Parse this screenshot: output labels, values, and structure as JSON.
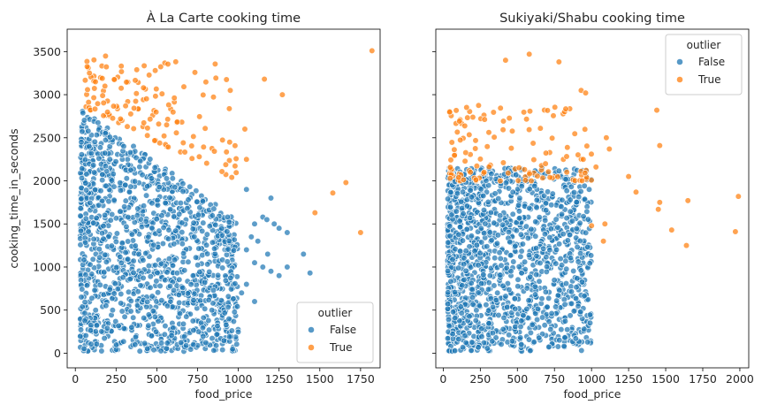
{
  "chart_data": [
    {
      "type": "scatter",
      "title": "À La Carte cooking time",
      "xlabel": "food_price",
      "ylabel": "cooking_time_in_seconds",
      "xlim": [
        -50,
        1870
      ],
      "ylim": [
        -170,
        3760
      ],
      "xticks": [
        0,
        250,
        500,
        750,
        1000,
        1250,
        1500,
        1750
      ],
      "yticks": [
        0,
        500,
        1000,
        1500,
        2000,
        2500,
        3000,
        3500
      ],
      "grid": false,
      "legend": {
        "title": "outlier",
        "placement": "lower-right"
      },
      "series": [
        {
          "name": "False",
          "color": "#1f77b4",
          "cluster": {
            "x": [
              30,
              1000
            ],
            "y": [
              20,
              2850
            ]
          },
          "points": [
            [
              1050,
              1900
            ],
            [
              1100,
              1500
            ],
            [
              1150,
              1580
            ],
            [
              1175,
              1550
            ],
            [
              1200,
              1800
            ],
            [
              1220,
              1500
            ],
            [
              1250,
              1450
            ],
            [
              1300,
              1400
            ],
            [
              1100,
              1050
            ],
            [
              1150,
              1000
            ],
            [
              1180,
              1150
            ],
            [
              1200,
              950
            ],
            [
              1250,
              900
            ],
            [
              1300,
              1000
            ],
            [
              1400,
              1150
            ],
            [
              1440,
              930
            ],
            [
              1050,
              800
            ],
            [
              1020,
              700
            ],
            [
              1100,
              600
            ],
            [
              1050,
              1200
            ],
            [
              1080,
              1350
            ],
            [
              1120,
              1300
            ]
          ]
        },
        {
          "name": "True",
          "color": "#ff7f0e",
          "cluster": {
            "x": [
              60,
              1010
            ],
            "y": [
              1850,
              3580
            ]
          },
          "points": [
            [
              1040,
              2600
            ],
            [
              1050,
              2250
            ],
            [
              1160,
              3180
            ],
            [
              1270,
              3000
            ],
            [
              1470,
              1630
            ],
            [
              1580,
              1860
            ],
            [
              1660,
              1980
            ],
            [
              1750,
              1400
            ],
            [
              1820,
              3510
            ]
          ]
        }
      ]
    },
    {
      "type": "scatter",
      "title": "Sukiyaki/Shabu cooking time",
      "xlabel": "food_price",
      "ylabel": "",
      "xlim": [
        -50,
        2060
      ],
      "ylim": [
        -170,
        3760
      ],
      "xticks": [
        0,
        250,
        500,
        750,
        1000,
        1250,
        1500,
        1750,
        2000
      ],
      "yticks": [
        0,
        500,
        1000,
        1500,
        2000,
        2500,
        3000,
        3500
      ],
      "grid": false,
      "legend": {
        "title": "outlier",
        "placement": "upper-right"
      },
      "series": [
        {
          "name": "False",
          "color": "#1f77b4",
          "cluster": {
            "x": [
              30,
              1000
            ],
            "y": [
              20,
              2150
            ]
          },
          "points": [
            [
              820,
              180
            ],
            [
              950,
              280
            ],
            [
              990,
              350
            ],
            [
              600,
              330
            ]
          ]
        },
        {
          "name": "True",
          "color": "#ff7f0e",
          "cluster": {
            "x": [
              40,
              1010
            ],
            "y": [
              1750,
              3050
            ]
          },
          "points": [
            [
              1000,
              1480
            ],
            [
              1030,
              2160
            ],
            [
              1080,
              1300
            ],
            [
              1090,
              1500
            ],
            [
              1100,
              2500
            ],
            [
              1120,
              2370
            ],
            [
              1250,
              2050
            ],
            [
              1300,
              1870
            ],
            [
              1440,
              2820
            ],
            [
              1450,
              1670
            ],
            [
              1460,
              1750
            ],
            [
              1460,
              2410
            ],
            [
              1540,
              1430
            ],
            [
              1640,
              1250
            ],
            [
              1650,
              1770
            ],
            [
              1970,
              1410
            ],
            [
              1990,
              1820
            ],
            [
              420,
              3400
            ],
            [
              580,
              3470
            ],
            [
              780,
              3380
            ],
            [
              930,
              3050
            ],
            [
              960,
              3020
            ]
          ]
        }
      ]
    }
  ]
}
